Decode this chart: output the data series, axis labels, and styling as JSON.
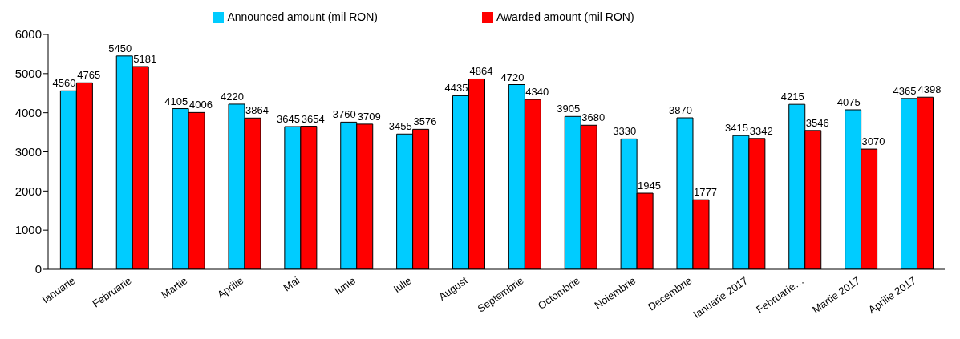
{
  "chart_data": {
    "type": "bar",
    "categories": [
      "Ianuarie",
      "Februarie",
      "Martie",
      "Aprilie",
      "Mai",
      "Iunie",
      "Iulie",
      "August",
      "Septembrie",
      "Octombrie",
      "Noiembrie",
      "Decembrie",
      "Ianuarie 2017",
      "Februarie…",
      "Martie 2017",
      "Aprilie 2017"
    ],
    "series": [
      {
        "name": "Announced amount (mil RON)",
        "color": "#00ccff",
        "values": [
          4560,
          5450,
          4105,
          4220,
          3645,
          3760,
          3455,
          4435,
          4720,
          3905,
          3330,
          3870,
          3415,
          4215,
          4075,
          4365
        ]
      },
      {
        "name": "Awarded amount (mil RON)",
        "color": "#ff0000",
        "values": [
          4765,
          5181,
          4006,
          3864,
          3654,
          3709,
          3576,
          4864,
          4340,
          3680,
          1945,
          1777,
          3342,
          3546,
          3070,
          4398
        ]
      }
    ],
    "ylim": [
      0,
      6000
    ],
    "yticks": [
      0,
      1000,
      2000,
      3000,
      4000,
      5000,
      6000
    ],
    "grid": false,
    "legend": "top",
    "data_labels": true
  }
}
